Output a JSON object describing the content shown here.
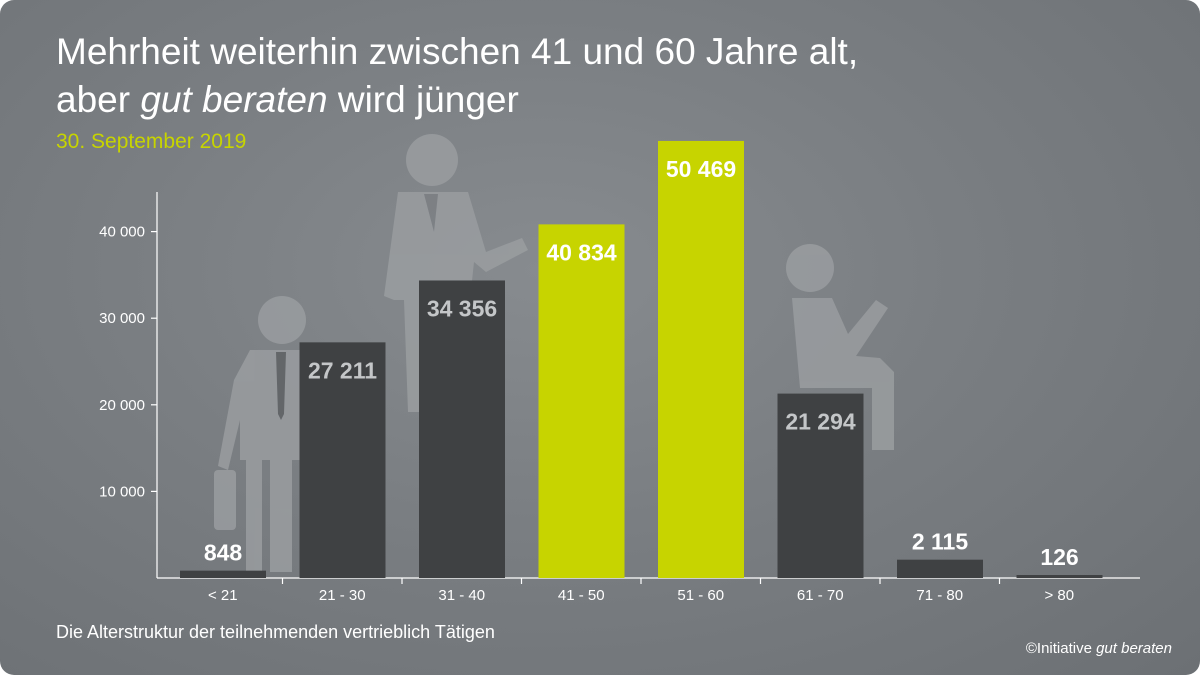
{
  "title": {
    "line1": "Mehrheit weiterhin zwischen 41 und 60 Jahre alt,",
    "line2_pre": "aber ",
    "line2_em": "gut beraten",
    "line2_post": " wird jünger"
  },
  "date": "30. September 2019",
  "caption": "Die Alterstruktur der teilnehmenden vertrieblich Tätigen",
  "credit": {
    "prefix": "©Initiative ",
    "em": "gut beraten"
  },
  "colors": {
    "background": "#7a7e82",
    "bar_dark": "#3f4143",
    "bar_highlight": "#c7d400",
    "figure": "#9a9da0",
    "text": "#ffffff",
    "dark_bar_label": "#c4c6c8"
  },
  "icons": [
    "young-man-with-briefcase-icon",
    "adult-man-pointing-icon",
    "seated-senior-icon"
  ],
  "chart_data": {
    "type": "bar",
    "title": "Mehrheit weiterhin zwischen 41 und 60 Jahre alt, aber gut beraten wird jünger",
    "subtitle": "30. September 2019",
    "xlabel": "",
    "ylabel": "",
    "categories": [
      "< 21",
      "21 - 30",
      "31 - 40",
      "41 - 50",
      "51 - 60",
      "61 - 70",
      "71 - 80",
      "> 80"
    ],
    "values": [
      848,
      27211,
      34356,
      40834,
      50469,
      21294,
      2115,
      126
    ],
    "value_labels": [
      "848",
      "27 211",
      "34 356",
      "40 834",
      "50 469",
      "21 294",
      "2 115",
      "126"
    ],
    "highlighted": [
      false,
      false,
      false,
      true,
      true,
      false,
      false,
      false
    ],
    "yticks": [
      10000,
      20000,
      30000,
      40000
    ],
    "ytick_labels": [
      "10 000",
      "20 000",
      "30 000",
      "40 000"
    ],
    "ylim": [
      0,
      52000
    ],
    "grid": false,
    "legend": "none"
  }
}
